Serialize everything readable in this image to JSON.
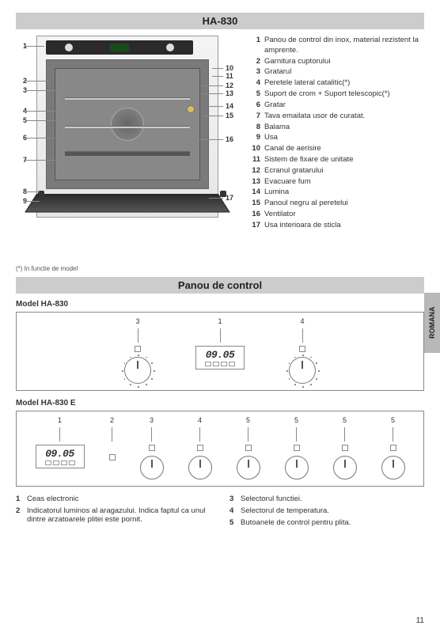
{
  "title": "HA-830",
  "section_title": "Panou de control",
  "footnote": "(*) In functie de model",
  "side_tab": "ROMANA",
  "page_number": "11",
  "parts": [
    {
      "n": "1",
      "t": "Panou de control din inox, material rezistent la amprente."
    },
    {
      "n": "2",
      "t": "Garnitura cuptorului"
    },
    {
      "n": "3",
      "t": "Gratarul"
    },
    {
      "n": "4",
      "t": "Peretele lateral catalitic(*)"
    },
    {
      "n": "5",
      "t": "Suport de crom + Suport telescopic(*)"
    },
    {
      "n": "6",
      "t": "Gratar"
    },
    {
      "n": "7",
      "t": "Tava emailata usor de curatat."
    },
    {
      "n": "8",
      "t": "Balama"
    },
    {
      "n": "9",
      "t": "Usa"
    },
    {
      "n": "10",
      "t": "Canal de aerisire"
    },
    {
      "n": "11",
      "t": "Sistem de fixare de unitate"
    },
    {
      "n": "12",
      "t": "Ecranul gratarului"
    },
    {
      "n": "13",
      "t": "Evacuare fum"
    },
    {
      "n": "14",
      "t": "Lumina"
    },
    {
      "n": "15",
      "t": "Panoul negru al peretelui"
    },
    {
      "n": "16",
      "t": "Ventilator"
    },
    {
      "n": "17",
      "t": "Usa interioara de sticla"
    }
  ],
  "model_a": {
    "label": "Model HA-830",
    "cols": [
      "3",
      "1",
      "4"
    ],
    "display_time": "09.05"
  },
  "model_b": {
    "label": "Model HA-830 E",
    "cols": [
      "1",
      "2",
      "3",
      "4",
      "5",
      "5",
      "5",
      "5"
    ],
    "display_time": "09.05"
  },
  "bottom": {
    "left": [
      {
        "n": "1",
        "t": "Ceas electronic"
      },
      {
        "n": "2",
        "t": "Indicatorul luminos al aragazului. Indica faptul ca unul dintre arzatoarele plitei este pornit."
      }
    ],
    "right": [
      {
        "n": "3",
        "t": "Selectorul functiei."
      },
      {
        "n": "4",
        "t": "Selectorul de temperatura."
      },
      {
        "n": "5",
        "t": "Butoanele de control pentru plita."
      }
    ]
  }
}
